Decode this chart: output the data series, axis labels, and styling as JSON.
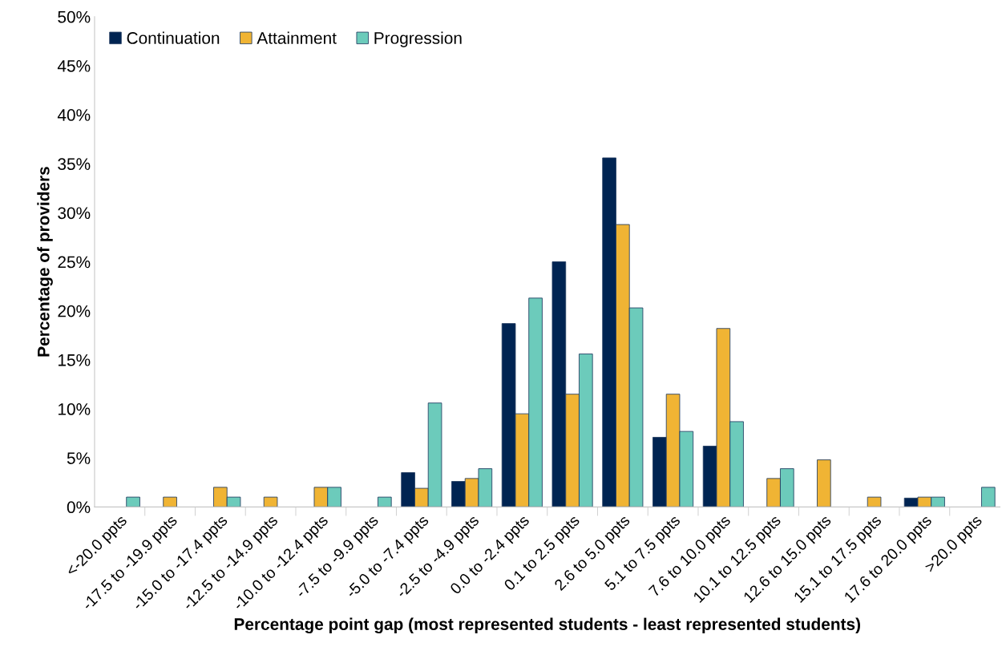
{
  "chart_data": {
    "type": "bar",
    "xlabel": "Percentage point gap (most represented students - least represented students)",
    "ylabel": "Percentage of providers",
    "categories": [
      "<-20.0 ppts",
      "-17.5 to -19.9 ppts",
      "-15.0 to -17.4 ppts",
      "-12.5 to -14.9 ppts",
      "-10.0 to -12.4 ppts",
      "-7.5 to -9.9 ppts",
      "-5.0 to -7.4 ppts",
      "-2.5 to -4.9 ppts",
      "0.0 to -2.4 ppts",
      "0.1 to 2.5 ppts",
      "2.6 to 5.0 ppts",
      "5.1 to 7.5 ppts",
      "7.6 to 10.0 ppts",
      "10.1 to 12.5 ppts",
      "12.6 to 15.0 ppts",
      "15.1 to 17.5 ppts",
      "17.6 to 20.0 ppts",
      ">20.0 ppts"
    ],
    "series": [
      {
        "name": "Continuation",
        "color": "#002452",
        "values": [
          null,
          null,
          null,
          null,
          null,
          null,
          3.5,
          2.6,
          18.7,
          25.0,
          35.6,
          7.1,
          6.2,
          null,
          null,
          null,
          0.9,
          null
        ]
      },
      {
        "name": "Attainment",
        "color": "#f0b434",
        "values": [
          null,
          1,
          2,
          1,
          2,
          null,
          1.9,
          2.9,
          9.5,
          11.5,
          28.8,
          11.5,
          18.2,
          2.9,
          4.8,
          1,
          1,
          null
        ]
      },
      {
        "name": "Progression",
        "color": "#6ccbbb",
        "values": [
          1,
          null,
          1,
          null,
          2,
          1,
          10.6,
          3.9,
          21.3,
          15.6,
          20.3,
          7.7,
          8.7,
          3.9,
          null,
          null,
          1,
          2
        ]
      }
    ],
    "ylim": [
      0,
      50
    ],
    "yticks": [
      {
        "value": 0,
        "label": "0%"
      },
      {
        "value": 5,
        "label": "5%"
      },
      {
        "value": 10,
        "label": "10%"
      },
      {
        "value": 15,
        "label": "15%"
      },
      {
        "value": 20,
        "label": "20%"
      },
      {
        "value": 25,
        "label": "25%"
      },
      {
        "value": 30,
        "label": "30%"
      },
      {
        "value": 35,
        "label": "35%"
      },
      {
        "value": 40,
        "label": "40%"
      },
      {
        "value": 45,
        "label": "45%"
      },
      {
        "value": 50,
        "label": "50%"
      }
    ],
    "grid": false,
    "legend": "top left"
  }
}
